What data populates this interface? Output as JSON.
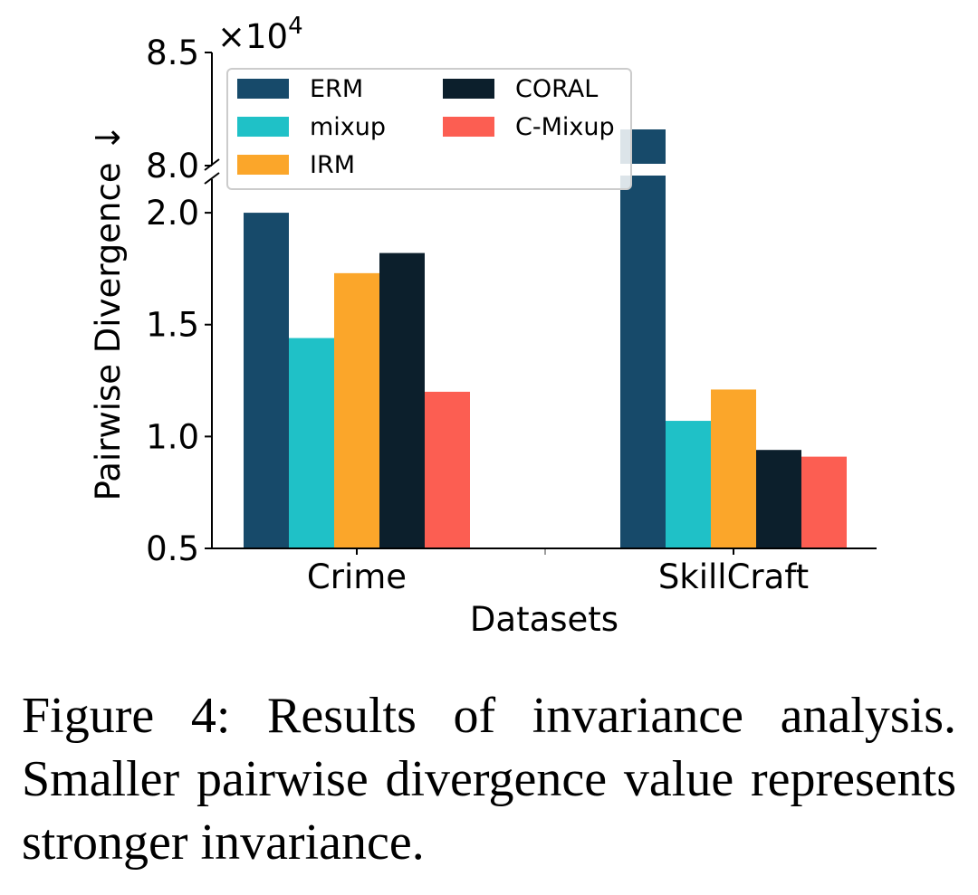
{
  "chart_data": {
    "type": "bar",
    "categories": [
      "Crime",
      "SkillCraft"
    ],
    "series": [
      {
        "name": "ERM",
        "color": "#174a6a",
        "values": [
          2.0,
          81600
        ]
      },
      {
        "name": "mixup",
        "color": "#1fc1c7",
        "values": [
          1.44,
          1.07
        ]
      },
      {
        "name": "IRM",
        "color": "#fba62a",
        "values": [
          1.73,
          1.21
        ]
      },
      {
        "name": "CORAL",
        "color": "#0c1f2c",
        "values": [
          1.82,
          0.94
        ]
      },
      {
        "name": "C-Mixup",
        "color": "#fc5e52",
        "values": [
          1.2,
          0.91
        ]
      }
    ],
    "xlabel": "Datasets",
    "ylabel": "Pairwise Divergence ↓",
    "lower_axis": {
      "ylim": [
        0.5,
        2.15
      ],
      "ticks": [
        "0.5",
        "1.0",
        "1.5",
        "2.0"
      ]
    },
    "upper_axis": {
      "ylim": [
        80000,
        85000
      ],
      "ticks": [
        "8.0",
        "8.5"
      ],
      "scale_label": "×10",
      "scale_exponent": "4"
    },
    "legend_position": "top-left"
  },
  "caption": "Figure 4: Results of invariance analysis. Smaller pairwise divergence value represents stronger invariance."
}
